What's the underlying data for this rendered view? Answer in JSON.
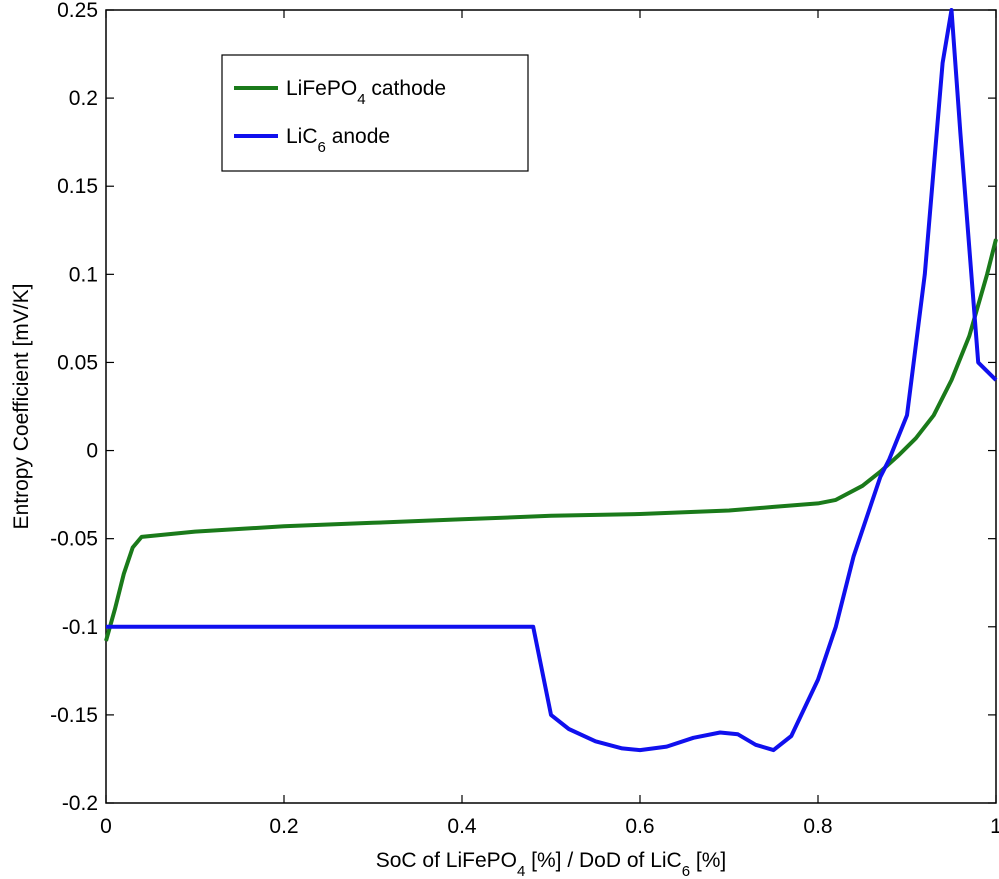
{
  "chart_data": {
    "type": "line",
    "xlabel": "SoC of LiFePO4 [%] / DoD of LiC6 [%]",
    "ylabel": "Entropy Coefficient [mV/K]",
    "xlim": [
      0,
      1
    ],
    "ylim": [
      -0.2,
      0.25
    ],
    "xticks": [
      "0",
      "0.2",
      "0.4",
      "0.6",
      "0.8",
      "1"
    ],
    "yticks": [
      "-0.2",
      "-0.15",
      "-0.1",
      "-0.05",
      "0",
      "0.05",
      "0.1",
      "0.15",
      "0.2",
      "0.25"
    ],
    "grid": false,
    "legend_position": "top-left",
    "series": [
      {
        "name": "LiFePO4 cathode",
        "legend_main": "LiFePO",
        "legend_sub": "4",
        "legend_rest": " cathode",
        "color": "#1a7a1a",
        "x": [
          0,
          0.01,
          0.02,
          0.03,
          0.04,
          0.06,
          0.1,
          0.2,
          0.3,
          0.4,
          0.5,
          0.6,
          0.7,
          0.75,
          0.8,
          0.82,
          0.85,
          0.87,
          0.89,
          0.91,
          0.93,
          0.95,
          0.97,
          0.99,
          1.0
        ],
        "y": [
          -0.108,
          -0.09,
          -0.07,
          -0.055,
          -0.049,
          -0.048,
          -0.046,
          -0.043,
          -0.041,
          -0.039,
          -0.037,
          -0.036,
          -0.034,
          -0.032,
          -0.03,
          -0.028,
          -0.02,
          -0.012,
          -0.003,
          0.007,
          0.02,
          0.04,
          0.065,
          0.1,
          0.12
        ]
      },
      {
        "name": "LiC6 anode",
        "legend_main": "LiC",
        "legend_sub": "6",
        "legend_rest": " anode",
        "color": "#1010ee",
        "x": [
          0,
          0.1,
          0.2,
          0.3,
          0.4,
          0.48,
          0.5,
          0.52,
          0.55,
          0.58,
          0.6,
          0.63,
          0.66,
          0.69,
          0.71,
          0.73,
          0.75,
          0.77,
          0.8,
          0.82,
          0.84,
          0.85,
          0.86,
          0.87,
          0.88,
          0.9,
          0.92,
          0.94,
          0.95,
          0.96,
          0.98,
          1.0
        ],
        "y": [
          -0.1,
          -0.1,
          -0.1,
          -0.1,
          -0.1,
          -0.1,
          -0.15,
          -0.158,
          -0.165,
          -0.169,
          -0.17,
          -0.168,
          -0.163,
          -0.16,
          -0.161,
          -0.167,
          -0.17,
          -0.162,
          -0.13,
          -0.1,
          -0.06,
          -0.045,
          -0.03,
          -0.015,
          -0.005,
          0.02,
          0.1,
          0.22,
          0.25,
          0.18,
          0.05,
          0.04
        ]
      }
    ]
  }
}
